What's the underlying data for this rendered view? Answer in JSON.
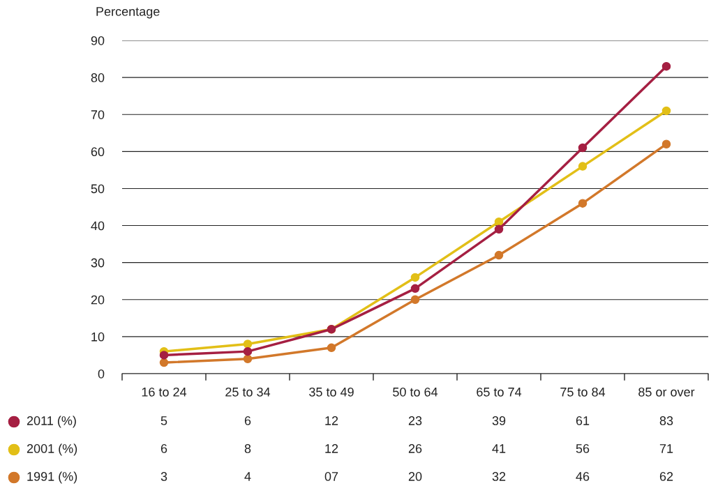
{
  "chart_data": {
    "type": "line",
    "ylabel": "Percentage",
    "categories": [
      "16 to 24",
      "25 to 34",
      "35 to 49",
      "50 to 64",
      "65 to 74",
      "75 to 84",
      "85 or over"
    ],
    "series": [
      {
        "name": "2011 (%)",
        "color": "#a51f42",
        "values": [
          5,
          6,
          12,
          23,
          39,
          61,
          83
        ],
        "value_labels": [
          "5",
          "6",
          "12",
          "23",
          "39",
          "61",
          "83"
        ]
      },
      {
        "name": "2001 (%)",
        "color": "#e2bf17",
        "values": [
          6,
          8,
          12,
          26,
          41,
          56,
          71
        ],
        "value_labels": [
          "6",
          "8",
          "12",
          "26",
          "41",
          "56",
          "71"
        ]
      },
      {
        "name": "1991 (%)",
        "color": "#d2782a",
        "values": [
          3,
          4,
          7,
          20,
          32,
          46,
          62
        ],
        "value_labels": [
          "3",
          "4",
          "07",
          "20",
          "32",
          "46",
          "62"
        ]
      }
    ],
    "ylim": [
      0,
      90
    ],
    "yticks": [
      0,
      10,
      20,
      30,
      40,
      50,
      60,
      70,
      80,
      90
    ],
    "grid": "y",
    "legend": "bottom left",
    "marker": "circle",
    "line_style": "solid"
  }
}
